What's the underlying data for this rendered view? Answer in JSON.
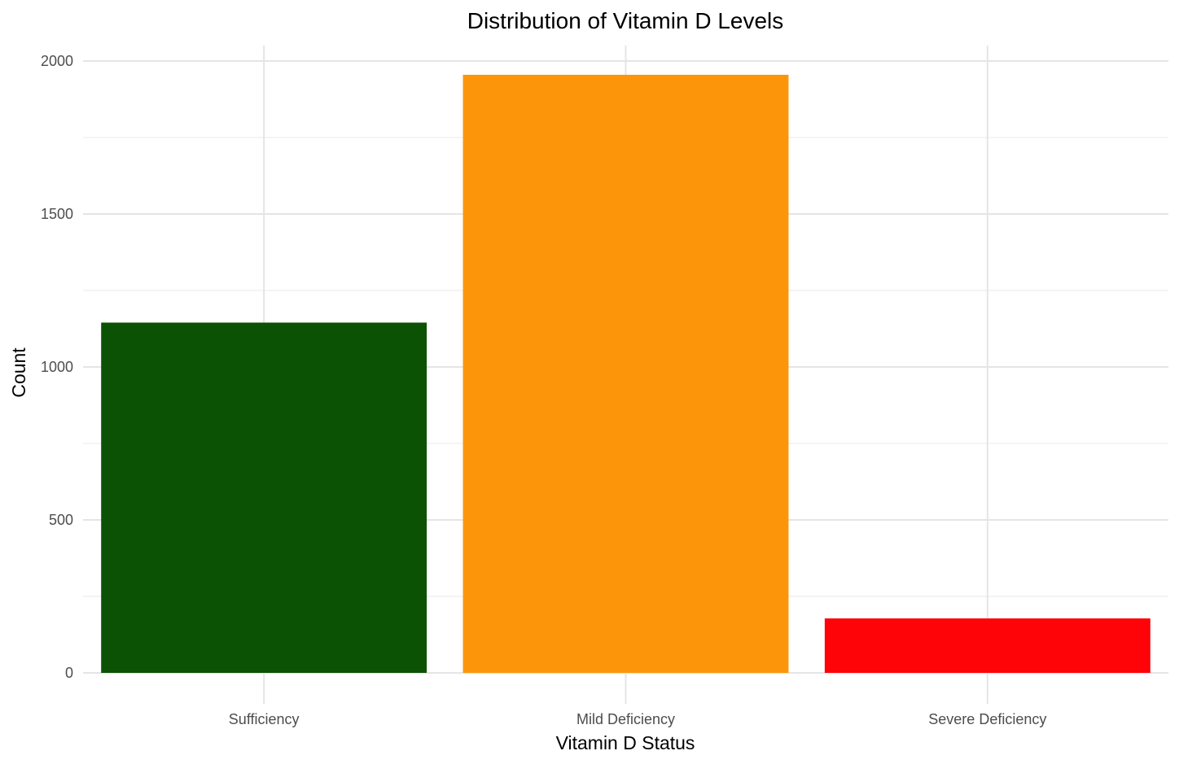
{
  "chart_data": {
    "type": "bar",
    "title": "Distribution of Vitamin D Levels",
    "xlabel": "Vitamin D Status",
    "ylabel": "Count",
    "categories": [
      "Sufficiency",
      "Mild Deficiency",
      "Severe Deficiency"
    ],
    "values": [
      1145,
      1955,
      178
    ],
    "colors": [
      "#0b5204",
      "#fd950b",
      "#fe0308"
    ],
    "ylim": [
      0,
      2000
    ],
    "yticks": [
      0,
      500,
      1000,
      1500,
      2000
    ],
    "ytick_labels": [
      "0",
      "500",
      "1000",
      "1500",
      "2000"
    ],
    "grid": true,
    "legend": "none"
  }
}
